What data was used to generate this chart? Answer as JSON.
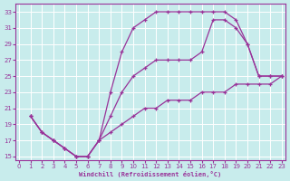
{
  "xlabel": "Windchill (Refroidissement éolien,°C)",
  "bg_color": "#c8ecec",
  "grid_color": "#ffffff",
  "line_color": "#993399",
  "xlim": [
    -0.3,
    23.3
  ],
  "ylim": [
    14.5,
    34
  ],
  "xticks": [
    0,
    1,
    2,
    3,
    4,
    5,
    6,
    7,
    8,
    9,
    10,
    11,
    12,
    13,
    14,
    15,
    16,
    17,
    18,
    19,
    20,
    21,
    22,
    23
  ],
  "yticks": [
    15,
    17,
    19,
    21,
    23,
    25,
    27,
    29,
    31,
    33
  ],
  "line1_x": [
    1,
    2,
    3,
    4,
    5,
    6,
    7,
    8,
    9,
    10,
    11,
    12,
    13,
    14,
    15,
    16,
    17,
    18,
    19,
    20,
    21,
    22,
    23
  ],
  "line1_y": [
    20,
    18,
    17,
    16,
    15,
    15,
    17,
    23,
    28,
    31,
    32,
    33,
    33,
    33,
    33,
    33,
    33,
    33,
    32,
    29,
    25,
    25,
    25
  ],
  "line2_x": [
    1,
    2,
    3,
    4,
    5,
    6,
    7,
    8,
    9,
    10,
    11,
    12,
    13,
    14,
    15,
    16,
    17,
    18,
    19,
    20,
    21,
    22,
    23
  ],
  "line2_y": [
    20,
    18,
    17,
    16,
    15,
    15,
    17,
    20,
    23,
    25,
    26,
    27,
    27,
    27,
    27,
    28,
    32,
    32,
    31,
    29,
    25,
    25,
    25
  ],
  "line3_x": [
    1,
    2,
    3,
    4,
    5,
    6,
    7,
    8,
    9,
    10,
    11,
    12,
    13,
    14,
    15,
    16,
    17,
    18,
    19,
    20,
    21,
    22,
    23
  ],
  "line3_y": [
    20,
    18,
    17,
    16,
    15,
    15,
    17,
    18,
    19,
    20,
    21,
    21,
    22,
    22,
    22,
    23,
    23,
    23,
    24,
    24,
    24,
    24,
    25
  ]
}
